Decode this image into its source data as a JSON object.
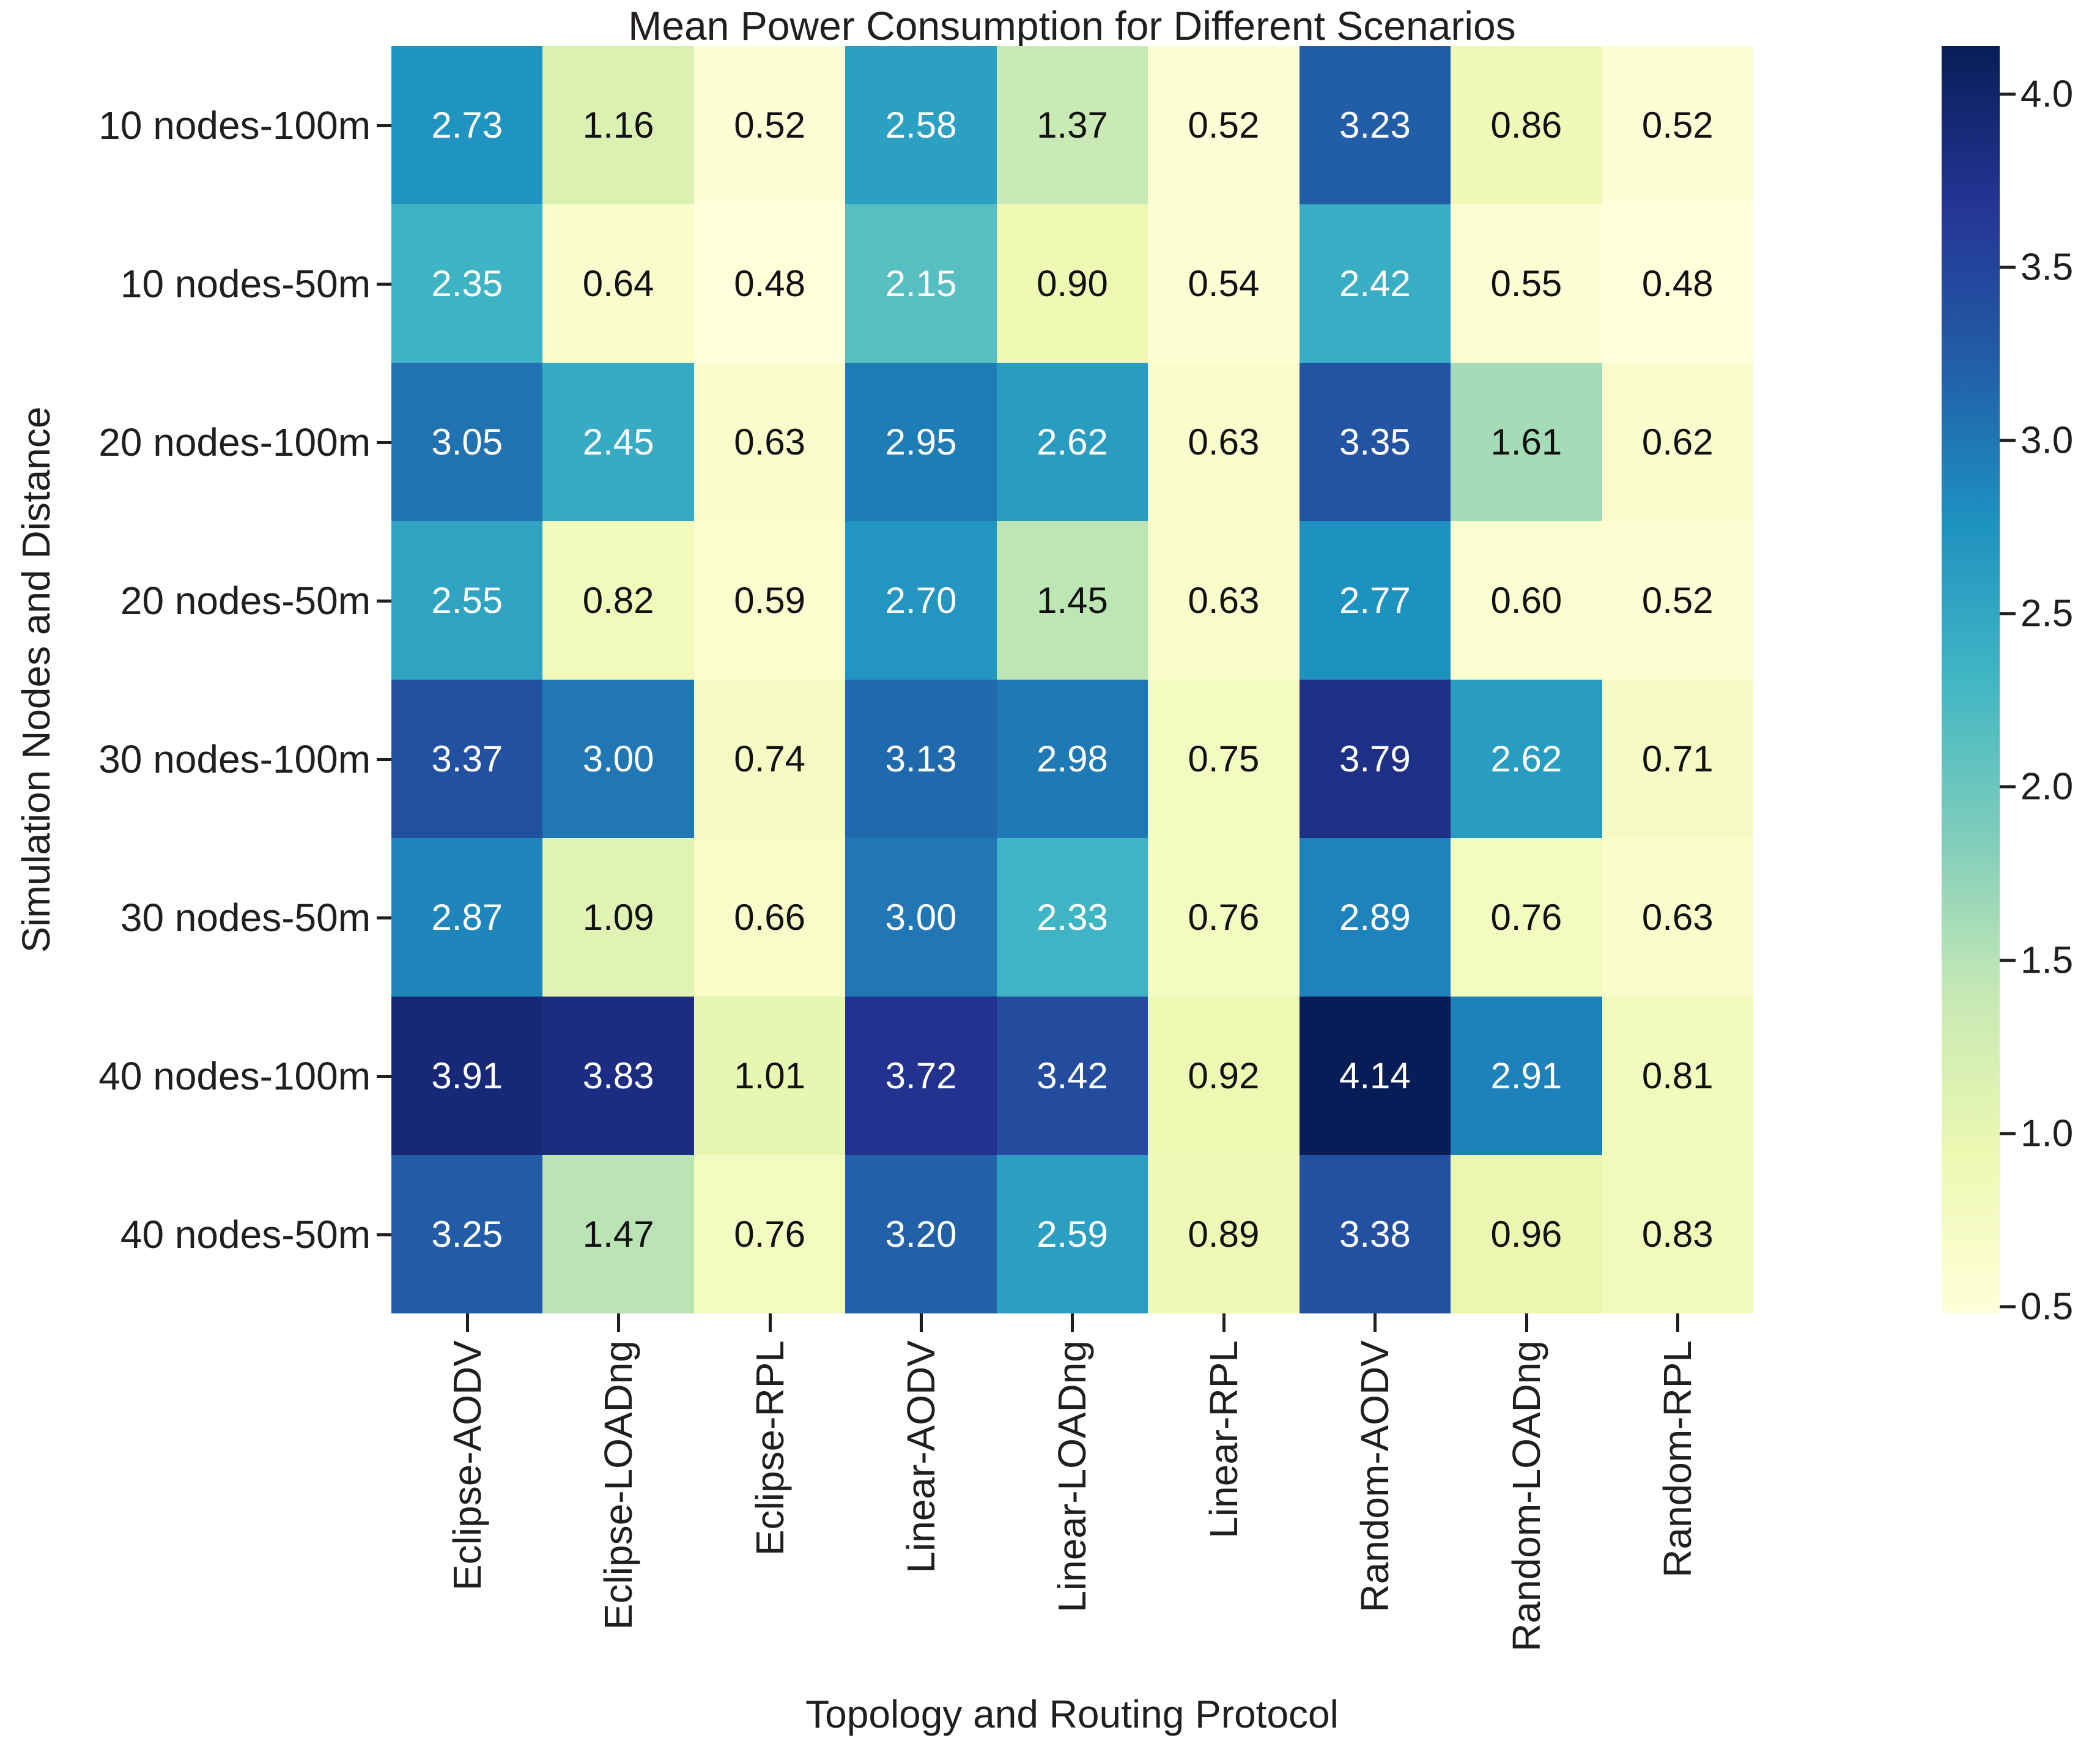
{
  "title": "Mean Power Consumption for Different Scenarios",
  "chart_data": {
    "type": "heatmap",
    "title": "Mean Power Consumption for Different Scenarios",
    "xlabel": "Topology and Routing Protocol",
    "ylabel": "Simulation Nodes and Distance",
    "columns": [
      "Eclipse-AODV",
      "Eclipse-LOADng",
      "Eclipse-RPL",
      "Linear-AODV",
      "Linear-LOADng",
      "Linear-RPL",
      "Random-AODV",
      "Random-LOADng",
      "Random-RPL"
    ],
    "rows": [
      "10 nodes-100m",
      "10 nodes-50m",
      "20 nodes-100m",
      "20 nodes-50m",
      "30 nodes-100m",
      "30 nodes-50m",
      "40 nodes-100m",
      "40 nodes-50m"
    ],
    "values": [
      [
        2.73,
        1.16,
        0.52,
        2.58,
        1.37,
        0.52,
        3.23,
        0.86,
        0.52
      ],
      [
        2.35,
        0.64,
        0.48,
        2.15,
        0.9,
        0.54,
        2.42,
        0.55,
        0.48
      ],
      [
        3.05,
        2.45,
        0.63,
        2.95,
        2.62,
        0.63,
        3.35,
        1.61,
        0.62
      ],
      [
        2.55,
        0.82,
        0.59,
        2.7,
        1.45,
        0.63,
        2.77,
        0.6,
        0.52
      ],
      [
        3.37,
        3.0,
        0.74,
        3.13,
        2.98,
        0.75,
        3.79,
        2.62,
        0.71
      ],
      [
        2.87,
        1.09,
        0.66,
        3.0,
        2.33,
        0.76,
        2.89,
        0.76,
        0.63
      ],
      [
        3.91,
        3.83,
        1.01,
        3.72,
        3.42,
        0.92,
        4.14,
        2.91,
        0.81
      ],
      [
        3.25,
        1.47,
        0.76,
        3.2,
        2.59,
        0.89,
        3.38,
        0.96,
        0.83
      ]
    ],
    "vmin": 0.48,
    "vmax": 4.14,
    "colormap": "YlGnBu",
    "colormap_stops": [
      "#ffffd9",
      "#edf8b1",
      "#c7e9b4",
      "#7fcdbb",
      "#41b6c4",
      "#1d91c0",
      "#225ea8",
      "#253494",
      "#081d58"
    ],
    "colorbar_ticks": [
      4.0,
      3.5,
      3.0,
      2.5,
      2.0,
      1.5,
      1.0,
      0.5
    ],
    "grid": false,
    "legend_position": "right-colorbar",
    "annotation_decimals": 2
  }
}
